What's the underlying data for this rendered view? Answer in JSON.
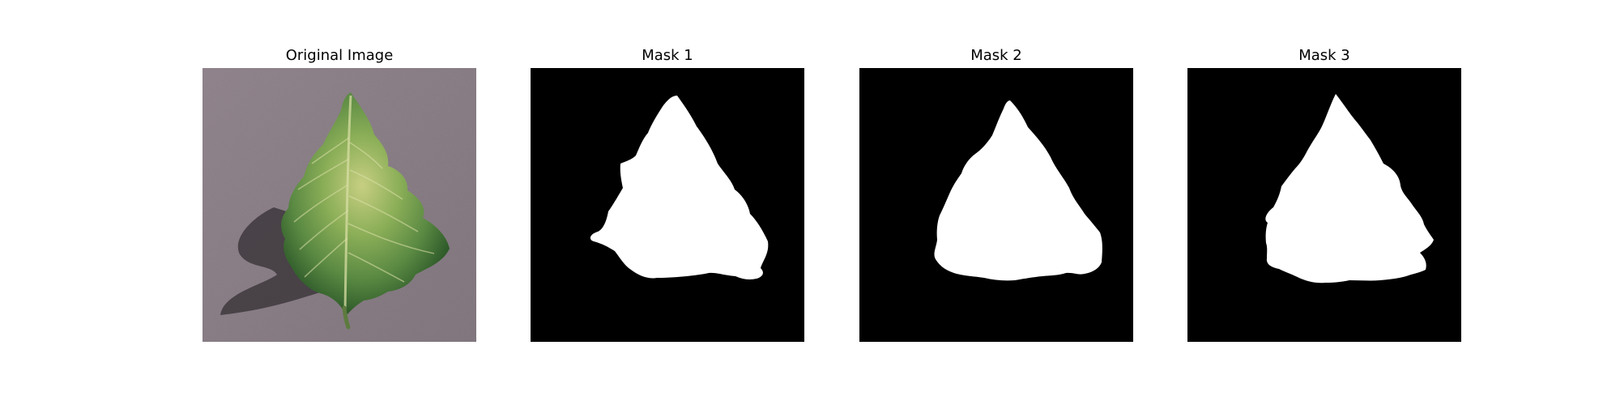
{
  "panels": [
    {
      "title": "Original Image",
      "kind": "photo"
    },
    {
      "title": "Mask 1",
      "kind": "mask"
    },
    {
      "title": "Mask 2",
      "kind": "mask"
    },
    {
      "title": "Mask 3",
      "kind": "mask"
    }
  ],
  "colors": {
    "background": "#ffffff",
    "mask_background": "#000000",
    "mask_foreground": "#ffffff",
    "photo_background": "#8e8188",
    "leaf_dark": "#2f5b2a",
    "leaf_mid": "#5b8a43",
    "leaf_light": "#c7cf82",
    "shadow": "#3f3a3e"
  }
}
